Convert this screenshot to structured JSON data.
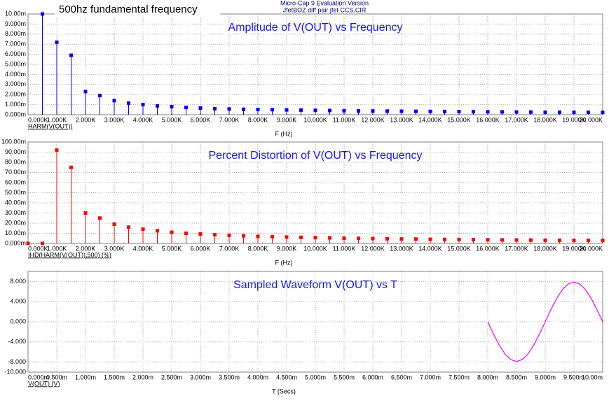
{
  "header": {
    "program": "Micro-Cap 9 Evaluation Version",
    "file": "JfetBOZ diff pair jfet CCS.CIR"
  },
  "chart_data": [
    {
      "type": "stem",
      "title": "Amplitude of V(OUT) vs Frequency",
      "annotation": "500hz fundamental frequency",
      "x_label": "F (Hz)",
      "grid": true,
      "x": [
        500,
        1000,
        1500,
        2000,
        2500,
        3000,
        3500,
        4000,
        4500,
        5000,
        5500,
        6000,
        6500,
        7000,
        7500,
        8000,
        8500,
        9000,
        9500,
        10000,
        10500,
        11000,
        11500,
        12000,
        12500,
        13000,
        13500,
        14000,
        14500,
        15000,
        15500,
        16000,
        16500,
        17000,
        17500,
        18000,
        18500,
        19000,
        19500,
        20000
      ],
      "series": [
        {
          "name": "HARM(V(OUT))",
          "color": "#0000ff",
          "values": [
            10,
            7.2,
            5.9,
            2.3,
            1.9,
            1.4,
            1.15,
            1.0,
            0.88,
            0.8,
            0.72,
            0.66,
            0.6,
            0.57,
            0.54,
            0.52,
            0.5,
            0.48,
            0.46,
            0.44,
            0.42,
            0.4,
            0.38,
            0.37,
            0.36,
            0.35,
            0.34,
            0.33,
            0.32,
            0.31,
            0.3,
            0.29,
            0.28,
            0.27,
            0.26,
            0.25,
            0.25,
            0.24,
            0.24,
            0.23
          ]
        }
      ],
      "xlim": [
        0,
        20000
      ],
      "xticks": [
        {
          "value": 0,
          "label": "0.000K"
        },
        {
          "value": 1000,
          "label": "1.000K"
        },
        {
          "value": 2000,
          "label": "2.000K"
        },
        {
          "value": 3000,
          "label": "3.000K"
        },
        {
          "value": 4000,
          "label": "4.000K"
        },
        {
          "value": 5000,
          "label": "5.000K"
        },
        {
          "value": 6000,
          "label": "6.000K"
        },
        {
          "value": 7000,
          "label": "7.000K"
        },
        {
          "value": 8000,
          "label": "8.000K"
        },
        {
          "value": 9000,
          "label": "9.000K"
        },
        {
          "value": 10000,
          "label": "10.000K"
        },
        {
          "value": 11000,
          "label": "11.000K"
        },
        {
          "value": 12000,
          "label": "12.000K"
        },
        {
          "value": 13000,
          "label": "13.000K"
        },
        {
          "value": 14000,
          "label": "14.000K"
        },
        {
          "value": 15000,
          "label": "15.000K"
        },
        {
          "value": 16000,
          "label": "16.000K"
        },
        {
          "value": 17000,
          "label": "17.000K"
        },
        {
          "value": 18000,
          "label": "18.000K"
        },
        {
          "value": 19000,
          "label": "19.000K"
        },
        {
          "value": 20000,
          "label": "20.000K"
        }
      ],
      "ylim": [
        0,
        10
      ],
      "yticks": [
        {
          "value": 0,
          "label": "0.000m"
        },
        {
          "value": 1,
          "label": "1.000m"
        },
        {
          "value": 2,
          "label": "2.000m"
        },
        {
          "value": 3,
          "label": "3.000m"
        },
        {
          "value": 4,
          "label": "4.000m"
        },
        {
          "value": 5,
          "label": "5.000m"
        },
        {
          "value": 6,
          "label": "6.000m"
        },
        {
          "value": 7,
          "label": "7.000m"
        },
        {
          "value": 8,
          "label": "8.000m"
        },
        {
          "value": 9,
          "label": "9.000m"
        },
        {
          "value": 10,
          "label": "10.00m"
        }
      ]
    },
    {
      "type": "stem",
      "title": "Percent Distortion of V(OUT) vs Frequency",
      "x_label": "F (Hz)",
      "grid": true,
      "x": [
        0,
        500,
        1000,
        1500,
        2000,
        2500,
        3000,
        3500,
        4000,
        4500,
        5000,
        5500,
        6000,
        6500,
        7000,
        7500,
        8000,
        8500,
        9000,
        9500,
        10000,
        10500,
        11000,
        11500,
        12000,
        12500,
        13000,
        13500,
        14000,
        14500,
        15000,
        15500,
        16000,
        16500,
        17000,
        17500,
        18000,
        18500,
        19000,
        19500,
        20000
      ],
      "series": [
        {
          "name": "IHD(HARM(V(OUT)),500) (%)",
          "color": "#ff0000",
          "values": [
            0,
            0,
            92,
            75,
            30,
            25,
            19,
            16,
            14,
            12.5,
            11,
            10,
            9.3,
            8.6,
            8,
            7.5,
            7,
            6.7,
            6.3,
            6,
            5.7,
            5.5,
            5.2,
            5,
            4.8,
            4.6,
            4.4,
            4.3,
            4.1,
            4,
            3.9,
            3.7,
            3.6,
            3.5,
            3.4,
            3.3,
            3.2,
            3.1,
            3,
            3,
            2.9
          ]
        }
      ],
      "xlim": [
        0,
        20000
      ],
      "xticks": [
        {
          "value": 0,
          "label": "0.000K"
        },
        {
          "value": 1000,
          "label": "1.000K"
        },
        {
          "value": 2000,
          "label": "2.000K"
        },
        {
          "value": 3000,
          "label": "3.000K"
        },
        {
          "value": 4000,
          "label": "4.000K"
        },
        {
          "value": 5000,
          "label": "5.000K"
        },
        {
          "value": 6000,
          "label": "6.000K"
        },
        {
          "value": 7000,
          "label": "7.000K"
        },
        {
          "value": 8000,
          "label": "8.000K"
        },
        {
          "value": 9000,
          "label": "9.000K"
        },
        {
          "value": 10000,
          "label": "10.000K"
        },
        {
          "value": 11000,
          "label": "11.000K"
        },
        {
          "value": 12000,
          "label": "12.000K"
        },
        {
          "value": 13000,
          "label": "13.000K"
        },
        {
          "value": 14000,
          "label": "14.000K"
        },
        {
          "value": 15000,
          "label": "15.000K"
        },
        {
          "value": 16000,
          "label": "16.000K"
        },
        {
          "value": 17000,
          "label": "17.000K"
        },
        {
          "value": 18000,
          "label": "18.000K"
        },
        {
          "value": 19000,
          "label": "19.000K"
        },
        {
          "value": 20000,
          "label": "20.000K"
        }
      ],
      "ylim": [
        0,
        100
      ],
      "yticks": [
        {
          "value": 0,
          "label": "0.000m"
        },
        {
          "value": 10,
          "label": "10.00m"
        },
        {
          "value": 20,
          "label": "20.00m"
        },
        {
          "value": 30,
          "label": "30.00m"
        },
        {
          "value": 40,
          "label": "40.00m"
        },
        {
          "value": 50,
          "label": "50.00m"
        },
        {
          "value": 60,
          "label": "60.00m"
        },
        {
          "value": 70,
          "label": "70.00m"
        },
        {
          "value": 80,
          "label": "80.00m"
        },
        {
          "value": 90,
          "label": "90.00m"
        },
        {
          "value": 100,
          "label": "100.00m"
        }
      ]
    },
    {
      "type": "line",
      "title": "Sampled Waveform  V(OUT) vs T",
      "x_label": "T (Secs)",
      "grid": true,
      "x": [
        8,
        8.1,
        8.2,
        8.3,
        8.4,
        8.5,
        8.6,
        8.7,
        8.8,
        8.9,
        9,
        9.1,
        9.2,
        9.3,
        9.4,
        9.5,
        9.6,
        9.7,
        9.8,
        9.9,
        10
      ],
      "series": [
        {
          "name": "V(OUT) (V)",
          "color": "#ff00ff",
          "values": [
            0,
            -2.44,
            -4.64,
            -6.39,
            -7.51,
            -7.9,
            -7.51,
            -6.39,
            -4.64,
            -2.44,
            0,
            2.44,
            4.64,
            6.39,
            7.51,
            7.9,
            7.51,
            6.39,
            4.64,
            2.44,
            0
          ]
        }
      ],
      "xlim": [
        0,
        10
      ],
      "xticks": [
        {
          "value": 0,
          "label": "0.000m"
        },
        {
          "value": 0.5,
          "label": "0.500m"
        },
        {
          "value": 1,
          "label": "1.000m"
        },
        {
          "value": 1.5,
          "label": "1.500m"
        },
        {
          "value": 2,
          "label": "2.000m"
        },
        {
          "value": 2.5,
          "label": "2.500m"
        },
        {
          "value": 3,
          "label": "3.000m"
        },
        {
          "value": 3.5,
          "label": "3.500m"
        },
        {
          "value": 4,
          "label": "4.000m"
        },
        {
          "value": 4.5,
          "label": "4.500m"
        },
        {
          "value": 5,
          "label": "5.000m"
        },
        {
          "value": 5.5,
          "label": "5.500m"
        },
        {
          "value": 6,
          "label": "6.000m"
        },
        {
          "value": 6.5,
          "label": "6.500m"
        },
        {
          "value": 7,
          "label": "7.000m"
        },
        {
          "value": 7.5,
          "label": "7.500m"
        },
        {
          "value": 8,
          "label": "8.000m"
        },
        {
          "value": 8.5,
          "label": "8.500m"
        },
        {
          "value": 9,
          "label": "9.000m"
        },
        {
          "value": 9.5,
          "label": "9.500m"
        },
        {
          "value": 10,
          "label": "10.00m"
        }
      ],
      "ylim": [
        -10,
        10
      ],
      "yticks": [
        {
          "value": -10,
          "label": "-10.000"
        },
        {
          "value": -8,
          "label": "-8.000"
        },
        {
          "value": -4,
          "label": "-4.000"
        },
        {
          "value": 0,
          "label": "0.000"
        },
        {
          "value": 4,
          "label": "4.000"
        },
        {
          "value": 8,
          "label": "8.000"
        }
      ]
    }
  ]
}
